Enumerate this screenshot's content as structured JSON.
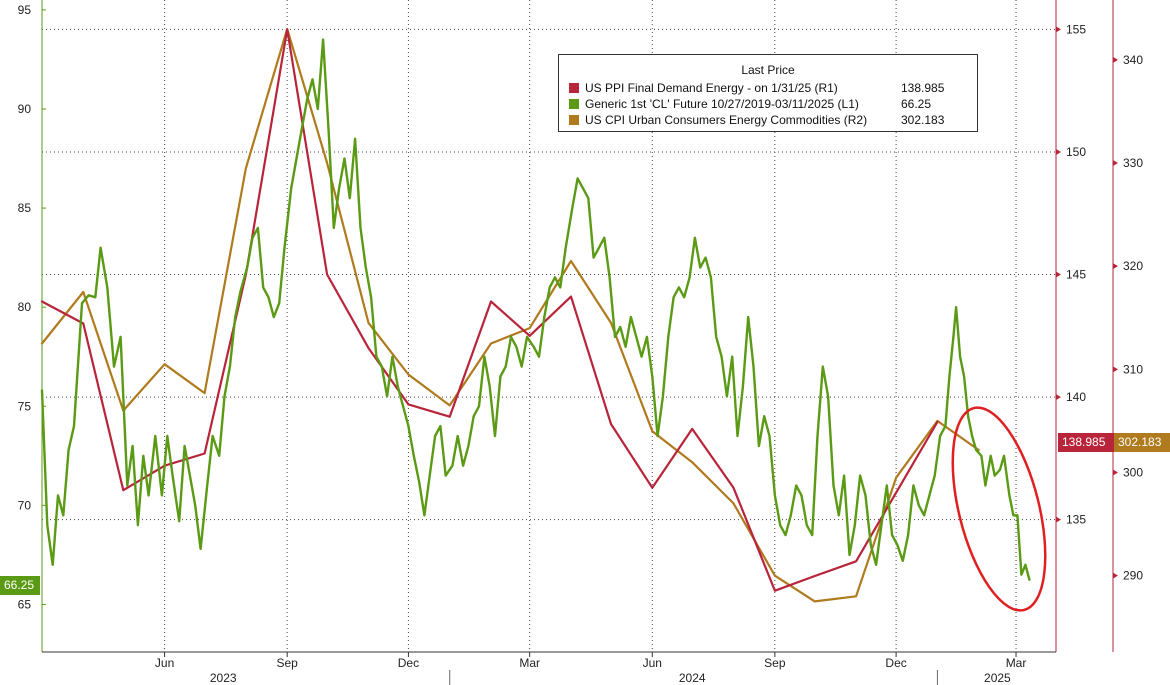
{
  "legend": {
    "title": "Last Price",
    "items": [
      {
        "label": "US PPI Final Demand Energy -  on 1/31/25  (R1)",
        "value": "138.985",
        "color": "#b8243a"
      },
      {
        "label": "Generic 1st 'CL' Future 10/27/2019-03/11/2025  (L1)",
        "value": "66.25",
        "color": "#5a9a14"
      },
      {
        "label": "US CPI Urban Consumers Energy Commodities  (R2)",
        "value": "302.183",
        "color": "#b07a1e"
      }
    ]
  },
  "last_price_tags": {
    "l1": {
      "text": "66.25",
      "color": "#5a9a14"
    },
    "r1": {
      "text": "138.985",
      "color": "#b8243a"
    },
    "r2": {
      "text": "302.183",
      "color": "#b07a1e"
    }
  },
  "annotation_color": "#e02020",
  "chart_data": {
    "type": "line",
    "x_range": [
      "2023-03-01",
      "2025-03-31"
    ],
    "x_month_ticks": [
      "Jun",
      "Sep",
      "Dec",
      "Mar",
      "Jun",
      "Sep",
      "Dec",
      "Mar"
    ],
    "x_month_tick_dates": [
      "2023-06-01",
      "2023-09-01",
      "2023-12-01",
      "2024-03-01",
      "2024-06-01",
      "2024-09-01",
      "2024-12-01",
      "2025-03-01"
    ],
    "x_year_labels": [
      "2023",
      "2024",
      "2025"
    ],
    "x_year_label_dates": [
      "2023-07-15",
      "2024-07-01",
      "2025-02-15"
    ],
    "axes": {
      "L1": {
        "range": [
          62.6,
          95.5
        ],
        "ticks": [
          65,
          70,
          75,
          80,
          85,
          90,
          95
        ]
      },
      "R1": {
        "range": [
          129.6,
          156.2
        ],
        "ticks": [
          135,
          140,
          145,
          150,
          155
        ]
      },
      "R2": {
        "range": [
          282.6,
          345.8
        ],
        "ticks": [
          290,
          300,
          310,
          320,
          330,
          340
        ]
      }
    },
    "grid": true,
    "legend_position": "top-right",
    "series": [
      {
        "name": "Generic 1st 'CL' Future 10/27/2019-03/11/2025",
        "axis": "L1",
        "color": "#5a9a14",
        "points": [
          [
            "2023-03-01",
            75.8
          ],
          [
            "2023-03-05",
            69.0
          ],
          [
            "2023-03-09",
            67.0
          ],
          [
            "2023-03-13",
            70.5
          ],
          [
            "2023-03-17",
            69.5
          ],
          [
            "2023-03-21",
            72.8
          ],
          [
            "2023-03-25",
            74.0
          ],
          [
            "2023-03-31",
            80.2
          ],
          [
            "2023-04-05",
            80.6
          ],
          [
            "2023-04-10",
            80.5
          ],
          [
            "2023-04-14",
            83.0
          ],
          [
            "2023-04-19",
            81.0
          ],
          [
            "2023-04-24",
            77.0
          ],
          [
            "2023-04-29",
            78.5
          ],
          [
            "2023-05-04",
            71.0
          ],
          [
            "2023-05-08",
            73.0
          ],
          [
            "2023-05-12",
            69.0
          ],
          [
            "2023-05-16",
            72.5
          ],
          [
            "2023-05-20",
            70.5
          ],
          [
            "2023-05-25",
            73.5
          ],
          [
            "2023-05-30",
            70.5
          ],
          [
            "2023-06-03",
            73.5
          ],
          [
            "2023-06-07",
            71.5
          ],
          [
            "2023-06-12",
            69.2
          ],
          [
            "2023-06-16",
            73.0
          ],
          [
            "2023-06-20",
            71.5
          ],
          [
            "2023-06-24",
            70.0
          ],
          [
            "2023-06-28",
            67.8
          ],
          [
            "2023-07-03",
            71.0
          ],
          [
            "2023-07-07",
            73.5
          ],
          [
            "2023-07-12",
            72.5
          ],
          [
            "2023-07-16",
            75.5
          ],
          [
            "2023-07-20",
            77.0
          ],
          [
            "2023-07-24",
            79.5
          ],
          [
            "2023-07-28",
            80.8
          ],
          [
            "2023-08-02",
            82.0
          ],
          [
            "2023-08-06",
            83.5
          ],
          [
            "2023-08-10",
            84.0
          ],
          [
            "2023-08-14",
            81.0
          ],
          [
            "2023-08-18",
            80.5
          ],
          [
            "2023-08-22",
            79.5
          ],
          [
            "2023-08-26",
            80.2
          ],
          [
            "2023-08-30",
            83.0
          ],
          [
            "2023-09-04",
            86.0
          ],
          [
            "2023-09-08",
            87.5
          ],
          [
            "2023-09-12",
            89.0
          ],
          [
            "2023-09-16",
            90.5
          ],
          [
            "2023-09-20",
            91.5
          ],
          [
            "2023-09-24",
            90.0
          ],
          [
            "2023-09-28",
            93.5
          ],
          [
            "2023-10-02",
            89.0
          ],
          [
            "2023-10-06",
            84.0
          ],
          [
            "2023-10-10",
            86.0
          ],
          [
            "2023-10-14",
            87.5
          ],
          [
            "2023-10-18",
            85.5
          ],
          [
            "2023-10-22",
            88.5
          ],
          [
            "2023-10-26",
            84.0
          ],
          [
            "2023-10-30",
            82.0
          ],
          [
            "2023-11-03",
            80.5
          ],
          [
            "2023-11-07",
            77.5
          ],
          [
            "2023-11-11",
            77.0
          ],
          [
            "2023-11-15",
            75.5
          ],
          [
            "2023-11-19",
            77.5
          ],
          [
            "2023-11-23",
            76.0
          ],
          [
            "2023-11-27",
            75.0
          ],
          [
            "2023-12-01",
            74.0
          ],
          [
            "2023-12-05",
            72.5
          ],
          [
            "2023-12-09",
            71.2
          ],
          [
            "2023-12-13",
            69.5
          ],
          [
            "2023-12-17",
            71.5
          ],
          [
            "2023-12-21",
            73.5
          ],
          [
            "2023-12-25",
            74.0
          ],
          [
            "2023-12-29",
            71.5
          ],
          [
            "2024-01-03",
            72.0
          ],
          [
            "2024-01-07",
            73.5
          ],
          [
            "2024-01-11",
            72.0
          ],
          [
            "2024-01-15",
            73.0
          ],
          [
            "2024-01-19",
            74.5
          ],
          [
            "2024-01-23",
            75.0
          ],
          [
            "2024-01-27",
            77.5
          ],
          [
            "2024-01-31",
            76.0
          ],
          [
            "2024-02-04",
            73.5
          ],
          [
            "2024-02-08",
            76.5
          ],
          [
            "2024-02-12",
            77.0
          ],
          [
            "2024-02-16",
            78.5
          ],
          [
            "2024-02-20",
            78.0
          ],
          [
            "2024-02-24",
            77.0
          ],
          [
            "2024-02-28",
            78.5
          ],
          [
            "2024-03-04",
            78.0
          ],
          [
            "2024-03-08",
            77.5
          ],
          [
            "2024-03-12",
            79.5
          ],
          [
            "2024-03-16",
            81.0
          ],
          [
            "2024-03-20",
            81.5
          ],
          [
            "2024-03-24",
            81.0
          ],
          [
            "2024-03-28",
            83.0
          ],
          [
            "2024-04-02",
            85.0
          ],
          [
            "2024-04-06",
            86.5
          ],
          [
            "2024-04-10",
            86.0
          ],
          [
            "2024-04-14",
            85.5
          ],
          [
            "2024-04-18",
            82.5
          ],
          [
            "2024-04-22",
            83.0
          ],
          [
            "2024-04-26",
            83.5
          ],
          [
            "2024-04-30",
            81.5
          ],
          [
            "2024-05-04",
            78.5
          ],
          [
            "2024-05-08",
            79.0
          ],
          [
            "2024-05-12",
            78.0
          ],
          [
            "2024-05-16",
            79.5
          ],
          [
            "2024-05-20",
            78.5
          ],
          [
            "2024-05-24",
            77.5
          ],
          [
            "2024-05-28",
            78.5
          ],
          [
            "2024-06-01",
            76.5
          ],
          [
            "2024-06-05",
            73.5
          ],
          [
            "2024-06-09",
            75.5
          ],
          [
            "2024-06-13",
            78.5
          ],
          [
            "2024-06-17",
            80.5
          ],
          [
            "2024-06-21",
            81.0
          ],
          [
            "2024-06-25",
            80.5
          ],
          [
            "2024-06-29",
            81.5
          ],
          [
            "2024-07-03",
            83.5
          ],
          [
            "2024-07-07",
            82.0
          ],
          [
            "2024-07-11",
            82.5
          ],
          [
            "2024-07-15",
            81.5
          ],
          [
            "2024-07-19",
            78.5
          ],
          [
            "2024-07-23",
            77.5
          ],
          [
            "2024-07-27",
            75.5
          ],
          [
            "2024-07-31",
            77.5
          ],
          [
            "2024-08-04",
            73.5
          ],
          [
            "2024-08-08",
            76.0
          ],
          [
            "2024-08-12",
            79.5
          ],
          [
            "2024-08-16",
            77.0
          ],
          [
            "2024-08-20",
            73.0
          ],
          [
            "2024-08-24",
            74.5
          ],
          [
            "2024-08-28",
            73.5
          ],
          [
            "2024-09-01",
            70.5
          ],
          [
            "2024-09-05",
            69.0
          ],
          [
            "2024-09-09",
            68.5
          ],
          [
            "2024-09-13",
            69.5
          ],
          [
            "2024-09-17",
            71.0
          ],
          [
            "2024-09-21",
            70.5
          ],
          [
            "2024-09-25",
            69.0
          ],
          [
            "2024-09-29",
            68.5
          ],
          [
            "2024-10-03",
            73.5
          ],
          [
            "2024-10-07",
            77.0
          ],
          [
            "2024-10-11",
            75.5
          ],
          [
            "2024-10-15",
            71.0
          ],
          [
            "2024-10-19",
            69.5
          ],
          [
            "2024-10-23",
            71.5
          ],
          [
            "2024-10-27",
            67.5
          ],
          [
            "2024-10-31",
            69.0
          ],
          [
            "2024-11-04",
            71.5
          ],
          [
            "2024-11-08",
            70.5
          ],
          [
            "2024-11-12",
            68.0
          ],
          [
            "2024-11-16",
            67.0
          ],
          [
            "2024-11-20",
            69.0
          ],
          [
            "2024-11-24",
            71.0
          ],
          [
            "2024-11-28",
            68.5
          ],
          [
            "2024-12-02",
            68.0
          ],
          [
            "2024-12-06",
            67.2
          ],
          [
            "2024-12-10",
            68.5
          ],
          [
            "2024-12-14",
            71.0
          ],
          [
            "2024-12-18",
            70.0
          ],
          [
            "2024-12-22",
            69.5
          ],
          [
            "2024-12-26",
            70.5
          ],
          [
            "2024-12-30",
            71.5
          ],
          [
            "2025-01-03",
            73.5
          ],
          [
            "2025-01-07",
            74.0
          ],
          [
            "2025-01-10",
            76.5
          ],
          [
            "2025-01-13",
            78.5
          ],
          [
            "2025-01-15",
            80.0
          ],
          [
            "2025-01-18",
            77.5
          ],
          [
            "2025-01-21",
            76.5
          ],
          [
            "2025-01-24",
            74.5
          ],
          [
            "2025-01-27",
            73.5
          ],
          [
            "2025-01-30",
            72.8
          ],
          [
            "2025-02-03",
            72.5
          ],
          [
            "2025-02-06",
            71.0
          ],
          [
            "2025-02-10",
            72.5
          ],
          [
            "2025-02-13",
            71.5
          ],
          [
            "2025-02-17",
            71.8
          ],
          [
            "2025-02-20",
            72.5
          ],
          [
            "2025-02-24",
            70.5
          ],
          [
            "2025-02-27",
            69.5
          ],
          [
            "2025-03-02",
            69.5
          ],
          [
            "2025-03-05",
            66.5
          ],
          [
            "2025-03-08",
            67.0
          ],
          [
            "2025-03-11",
            66.25
          ]
        ]
      },
      {
        "name": "US PPI Final Demand Energy -  on 1/31/25",
        "axis": "R1",
        "color": "#b8243a",
        "points": [
          [
            "2023-03-01",
            143.9
          ],
          [
            "2023-04-01",
            143.0
          ],
          [
            "2023-05-01",
            136.2
          ],
          [
            "2023-06-01",
            137.2
          ],
          [
            "2023-07-01",
            137.7
          ],
          [
            "2023-08-01",
            145.0
          ],
          [
            "2023-09-01",
            155.0
          ],
          [
            "2023-10-01",
            145.0
          ],
          [
            "2023-11-01",
            142.0
          ],
          [
            "2023-12-01",
            139.7
          ],
          [
            "2024-01-01",
            139.2
          ],
          [
            "2024-02-01",
            143.9
          ],
          [
            "2024-03-01",
            142.5
          ],
          [
            "2024-04-01",
            144.1
          ],
          [
            "2024-05-01",
            138.9
          ],
          [
            "2024-06-01",
            136.3
          ],
          [
            "2024-07-01",
            138.7
          ],
          [
            "2024-08-01",
            136.3
          ],
          [
            "2024-09-01",
            132.1
          ],
          [
            "2024-10-01",
            132.7
          ],
          [
            "2024-11-01",
            133.3
          ],
          [
            "2024-12-01",
            136.1
          ],
          [
            "2025-01-01",
            138.985
          ]
        ]
      },
      {
        "name": "US CPI Urban Consumers Energy Commodities",
        "axis": "R2",
        "color": "#b07a1e",
        "points": [
          [
            "2023-03-01",
            312.5
          ],
          [
            "2023-04-01",
            317.5
          ],
          [
            "2023-05-01",
            306.0
          ],
          [
            "2023-06-01",
            310.5
          ],
          [
            "2023-07-01",
            307.7
          ],
          [
            "2023-08-01",
            329.5
          ],
          [
            "2023-09-01",
            343.0
          ],
          [
            "2023-10-01",
            330.0
          ],
          [
            "2023-11-01",
            314.5
          ],
          [
            "2023-12-01",
            309.5
          ],
          [
            "2024-01-01",
            306.5
          ],
          [
            "2024-02-01",
            312.5
          ],
          [
            "2024-03-01",
            314.0
          ],
          [
            "2024-04-01",
            320.5
          ],
          [
            "2024-05-01",
            314.5
          ],
          [
            "2024-06-01",
            304.0
          ],
          [
            "2024-07-01",
            301.0
          ],
          [
            "2024-08-01",
            297.0
          ],
          [
            "2024-09-01",
            290.0
          ],
          [
            "2024-10-01",
            287.5
          ],
          [
            "2024-11-01",
            288.0
          ],
          [
            "2024-12-01",
            299.5
          ],
          [
            "2025-01-01",
            305.0
          ],
          [
            "2025-02-01",
            302.183
          ]
        ]
      }
    ]
  }
}
